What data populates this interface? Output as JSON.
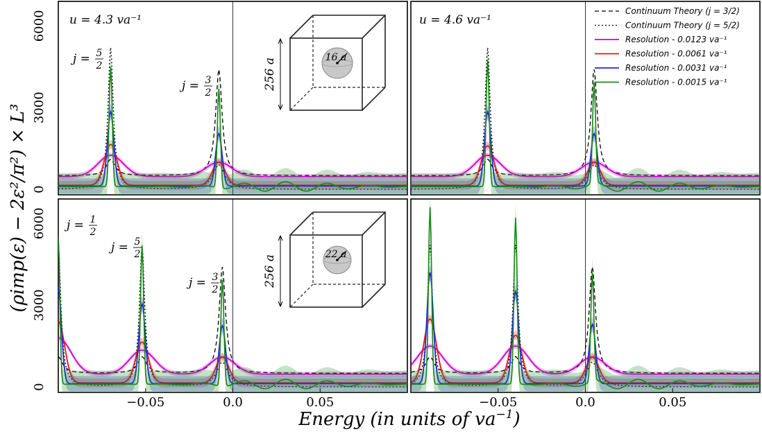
{
  "figure": {
    "xlabel": "Energy (in units of va",
    "xlabel_sup": "−1",
    "xlabel_close": ")",
    "ylabel": "(ρimp(ε) − 2ε²/π²) × L³"
  },
  "colors": {
    "continuum": "#000000",
    "res1": "#cc00cc",
    "res2": "#e8141a",
    "res3": "#1f26d6",
    "res4": "#1a8a1a"
  },
  "legend": [
    {
      "label": "Continuum Theory (j = 3/2)",
      "style": "dashed",
      "color": "#000000"
    },
    {
      "label": "Continuum Theory (j = 5/2)",
      "style": "dotted",
      "color": "#000000"
    },
    {
      "label": "Resolution - 0.0123 va⁻¹",
      "style": "solid",
      "color": "#cc00cc"
    },
    {
      "label": "Resolution - 0.0061 va⁻¹",
      "style": "solid",
      "color": "#e8141a"
    },
    {
      "label": "Resolution - 0.0031 va⁻¹",
      "style": "solid",
      "color": "#1f26d6"
    },
    {
      "label": "Resolution - 0.0015 va⁻¹",
      "style": "solid",
      "color": "#1a8a1a"
    }
  ],
  "chart_data": [
    {
      "panel": "top-left",
      "type": "line",
      "title": "u = 4.3 va⁻¹",
      "xlim": [
        -0.1,
        0.1
      ],
      "ylim": [
        -200,
        6900
      ],
      "yticks": [
        0,
        3000,
        6000
      ],
      "xticks": [],
      "annotations": [
        "j = 5/2",
        "j = 3/2"
      ],
      "cube": {
        "side": "256 a",
        "radius": "16 a"
      },
      "peaks": [
        {
          "name": "j=5/2",
          "x": -0.07,
          "values": {
            "res1": 1250,
            "res2": 1650,
            "res3": 2850,
            "res4": 4500
          }
        },
        {
          "name": "j=3/2",
          "x": -0.008,
          "values": {
            "res1": 1000,
            "res2": 1000,
            "res3": 2050,
            "res4": 3750
          }
        }
      ],
      "series": [
        {
          "name": "Continuum Theory (j=3/2)",
          "color": "continuum"
        },
        {
          "name": "Continuum Theory (j=5/2)",
          "color": "continuum"
        },
        {
          "name": "Resolution - 0.0123",
          "color": "res1"
        },
        {
          "name": "Resolution - 0.0061",
          "color": "res2"
        },
        {
          "name": "Resolution - 0.0031",
          "color": "res3"
        },
        {
          "name": "Resolution - 0.0015",
          "color": "res4"
        }
      ]
    },
    {
      "panel": "top-right",
      "type": "line",
      "title": "u = 4.6 va⁻¹",
      "xlim": [
        -0.1,
        0.1
      ],
      "ylim": [
        -200,
        6900
      ],
      "yticks": [],
      "xticks": [],
      "peaks": [
        {
          "name": "j=5/2",
          "x": -0.056,
          "values": {
            "res1": 1250,
            "res2": 1600,
            "res3": 2850,
            "res4": 4750
          }
        },
        {
          "name": "j=3/2",
          "x": 0.005,
          "values": {
            "res1": 1000,
            "res2": 1000,
            "res3": 2050,
            "res4": 3800
          }
        }
      ]
    },
    {
      "panel": "bottom-left",
      "type": "line",
      "xlim": [
        -0.1,
        0.1
      ],
      "ylim": [
        -200,
        6900
      ],
      "yticks": [
        0,
        3000,
        6000
      ],
      "xticks": [
        -0.05,
        0.0,
        0.05
      ],
      "annotations": [
        "j = 1/2",
        "j = 5/2",
        "j = 3/2"
      ],
      "cube": {
        "side": "256 a",
        "radius": "22 a"
      },
      "peaks": [
        {
          "name": "j=1/2",
          "x": -0.1,
          "values": {
            "res1": 1800,
            "res2": 2400,
            "res3": 3600,
            "res4": 5500
          }
        },
        {
          "name": "j=5/2",
          "x": -0.052,
          "values": {
            "res1": 1350,
            "res2": 1650,
            "res3": 3050,
            "res4": 5200
          }
        },
        {
          "name": "j=3/2",
          "x": -0.006,
          "values": {
            "res1": 1100,
            "res2": 1100,
            "res3": 2250,
            "res4": 4000
          }
        }
      ]
    },
    {
      "panel": "bottom-right",
      "type": "line",
      "xlim": [
        -0.1,
        0.1
      ],
      "ylim": [
        -200,
        6900
      ],
      "yticks": [],
      "xticks": [
        -0.05,
        0.0,
        0.05
      ],
      "peaks": [
        {
          "name": "j=1/2",
          "x": -0.089,
          "values": {
            "res1": 1500,
            "res2": 2500,
            "res3": 4200,
            "res4": 6600
          }
        },
        {
          "name": "j=5/2",
          "x": -0.04,
          "values": {
            "res1": 1500,
            "res2": 1900,
            "res3": 3500,
            "res4": 6200
          }
        },
        {
          "name": "j=3/2",
          "x": 0.004,
          "values": {
            "res1": 1100,
            "res2": 1100,
            "res3": 2300,
            "res4": 4100
          }
        }
      ]
    }
  ]
}
